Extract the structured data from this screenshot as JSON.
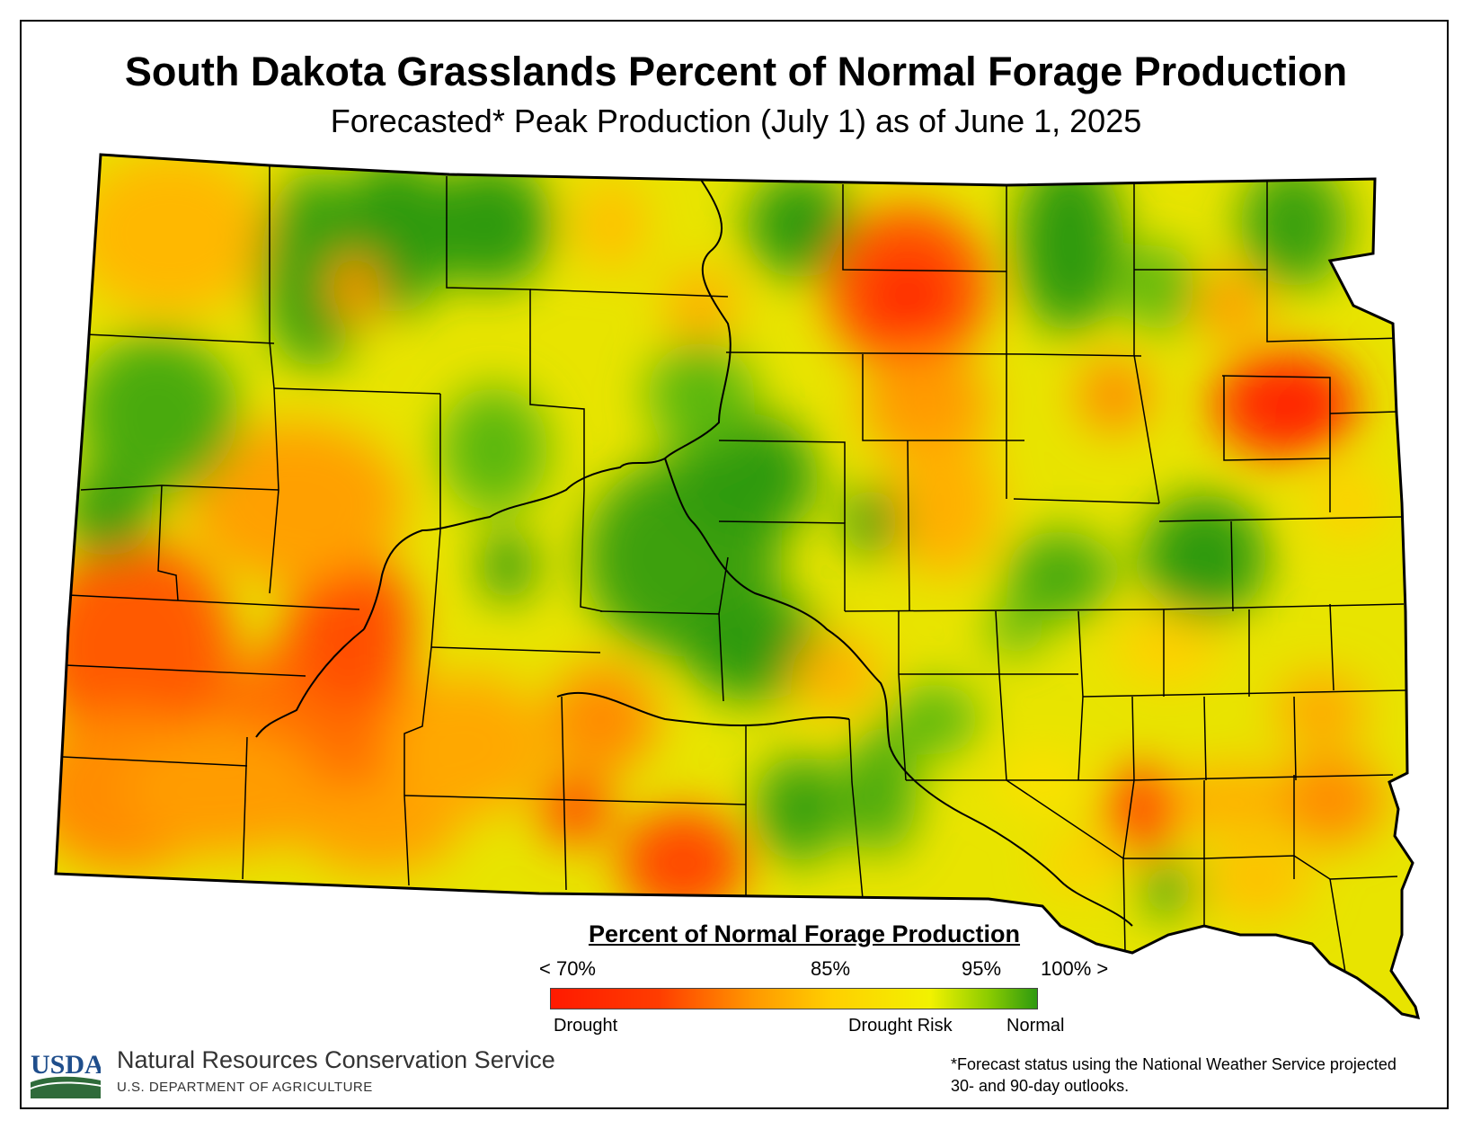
{
  "title": "South Dakota Grasslands Percent of Normal Forage Production",
  "subtitle": "Forecasted* Peak Production (July 1) as of June 1, 2025",
  "legend": {
    "title": "Percent of Normal Forage Production",
    "ticks": [
      "< 70%",
      "85%",
      "95%",
      "100% >"
    ],
    "categories": [
      "Drought",
      "Drought Risk",
      "Normal"
    ],
    "colors": [
      "#ff1a00",
      "#ff7a00",
      "#ffc800",
      "#f5f500",
      "#8ed100",
      "#2e9a10"
    ]
  },
  "agency": {
    "logo_text": "USDA",
    "name": "Natural Resources Conservation Service",
    "department": "U.S. DEPARTMENT OF AGRICULTURE"
  },
  "footnote": "*Forecast status using the National Weather Service projected 30- and 90-day outlooks.",
  "map_colors": {
    "drought": "#ff2a00",
    "severe_orange": "#ff7a00",
    "orange": "#ffa800",
    "gold": "#ffc800",
    "yellow": "#f2f000",
    "lightgreen": "#a9da00",
    "green": "#5cb80a",
    "darkgreen": "#2e9a10"
  }
}
